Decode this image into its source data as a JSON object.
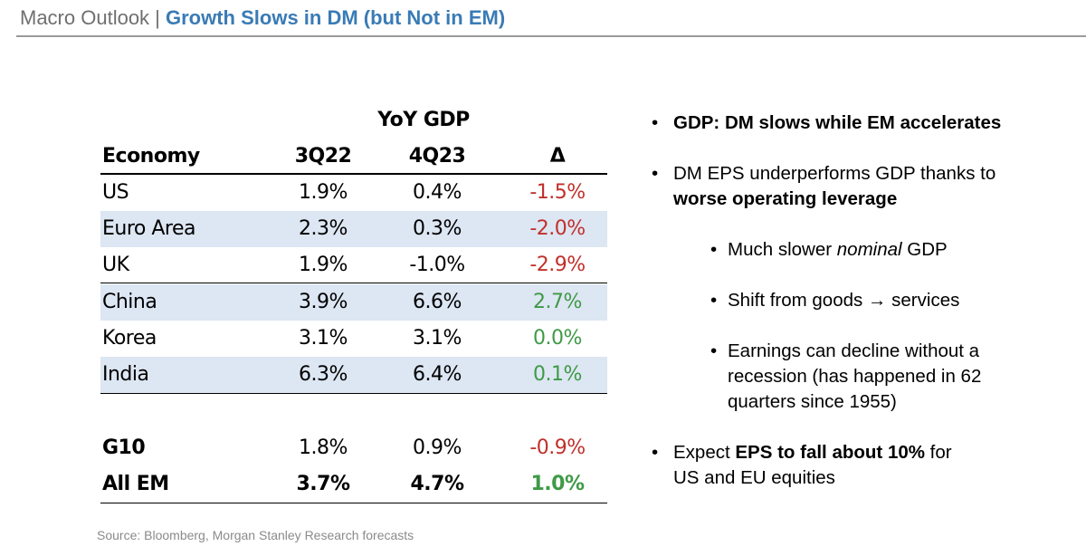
{
  "header": {
    "prefix": "Macro Outlook | ",
    "title": "Growth Slows in DM (but Not in EM)"
  },
  "table": {
    "group_label": "YoY GDP",
    "columns": [
      "Economy",
      "3Q22",
      "4Q23",
      "Δ"
    ],
    "rows": [
      {
        "economy": "US",
        "q3_22": "1.9%",
        "q4_23": "0.4%",
        "delta": "-1.5%",
        "delta_sign": "neg",
        "shaded": false
      },
      {
        "economy": "Euro Area",
        "q3_22": "2.3%",
        "q4_23": "0.3%",
        "delta": "-2.0%",
        "delta_sign": "neg",
        "shaded": true
      },
      {
        "economy": "UK",
        "q3_22": "1.9%",
        "q4_23": "-1.0%",
        "delta": "-2.9%",
        "delta_sign": "neg",
        "shaded": false
      },
      {
        "economy": "China",
        "q3_22": "3.9%",
        "q4_23": "6.6%",
        "delta": "2.7%",
        "delta_sign": "pos",
        "shaded": true
      },
      {
        "economy": "Korea",
        "q3_22": "3.1%",
        "q4_23": "3.1%",
        "delta": "0.0%",
        "delta_sign": "pos",
        "shaded": false
      },
      {
        "economy": "India",
        "q3_22": "6.3%",
        "q4_23": "6.4%",
        "delta": "0.1%",
        "delta_sign": "pos",
        "shaded": true
      }
    ],
    "summary_rows": [
      {
        "economy": "G10",
        "q3_22": "1.8%",
        "q4_23": "0.9%",
        "delta": "-0.9%",
        "delta_sign": "neg",
        "bold_name_only": true
      },
      {
        "economy": "All EM",
        "q3_22": "3.7%",
        "q4_23": "4.7%",
        "delta": "1.0%",
        "delta_sign": "pos",
        "bold_all": true
      }
    ],
    "colors": {
      "negative": "#c0302a",
      "positive": "#3f9a46",
      "shade": "#dde6f3"
    }
  },
  "source": "Source: Bloomberg, Morgan Stanley Research forecasts",
  "bullets": {
    "b1": "GDP: DM slows while EM accelerates",
    "b2_pre": "DM EPS underperforms GDP thanks to",
    "b2_bold": "worse operating leverage",
    "s1_pre": "Much slower ",
    "s1_em": "nominal",
    "s1_post": " GDP",
    "s2": "Shift from goods → services",
    "s3_l1": "Earnings can decline without a",
    "s3_l2": "recession (has happened in 62",
    "s3_l3": "quarters since 1955)",
    "b3_pre": "Expect ",
    "b3_bold": "EPS to fall about 10%",
    "b3_post": " for",
    "b3_l2": "US and EU equities"
  }
}
